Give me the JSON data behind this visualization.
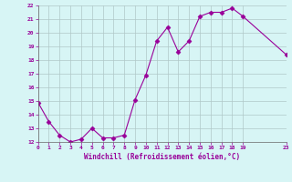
{
  "x": [
    0,
    1,
    2,
    3,
    4,
    5,
    6,
    7,
    8,
    9,
    10,
    11,
    12,
    13,
    14,
    15,
    16,
    17,
    18,
    19,
    23
  ],
  "y": [
    14.9,
    13.5,
    12.5,
    12.0,
    12.2,
    13.0,
    12.3,
    12.3,
    12.5,
    15.1,
    16.9,
    19.4,
    20.4,
    18.6,
    19.4,
    21.2,
    21.5,
    21.5,
    21.8,
    21.2,
    18.4
  ],
  "line_color": "#990099",
  "marker": "D",
  "markersize": 2.5,
  "bg_color": "#d7f5f5",
  "grid_color": "#b0c8c8",
  "xlabel": "Windchill (Refroidissement éolien,°C)",
  "xlabel_color": "#990099",
  "tick_color": "#990099",
  "ylim": [
    12,
    22
  ],
  "xlim": [
    0,
    23
  ],
  "yticks": [
    12,
    13,
    14,
    15,
    16,
    17,
    18,
    19,
    20,
    21,
    22
  ],
  "xticks": [
    0,
    1,
    2,
    3,
    4,
    5,
    6,
    7,
    8,
    9,
    10,
    11,
    12,
    13,
    14,
    15,
    16,
    17,
    18,
    19,
    23
  ]
}
